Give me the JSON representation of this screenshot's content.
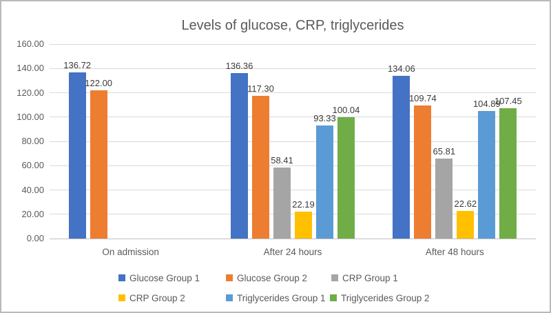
{
  "chart_data": {
    "type": "bar",
    "title": "Levels of glucose, CRP, triglycerides",
    "categories": [
      "On admission",
      "After 24 hours",
      "After 48 hours"
    ],
    "series": [
      {
        "name": "Glucose Group 1",
        "color": "#4472C4",
        "values": [
          136.72,
          136.36,
          134.06
        ]
      },
      {
        "name": "Glucose Group 2",
        "color": "#ED7D31",
        "values": [
          122.0,
          117.3,
          109.74
        ]
      },
      {
        "name": "CRP Group 1",
        "color": "#A5A5A5",
        "values": [
          null,
          58.41,
          65.81
        ]
      },
      {
        "name": "CRP Group 2",
        "color": "#FFC000",
        "values": [
          null,
          22.19,
          22.62
        ]
      },
      {
        "name": "Triglycerides Group 1",
        "color": "#5B9BD5",
        "values": [
          null,
          93.33,
          104.89
        ]
      },
      {
        "name": "Triglycerides Group 2",
        "color": "#70AD47",
        "values": [
          null,
          100.04,
          107.45
        ]
      }
    ],
    "y_axis": {
      "min": 0,
      "max": 160,
      "step": 20,
      "tick_labels": [
        "0.00",
        "20.00",
        "40.00",
        "60.00",
        "80.00",
        "100.00",
        "120.00",
        "140.00",
        "160.00"
      ]
    },
    "data_labels": true,
    "data_label_decimals": 2,
    "grid": true,
    "legend_position": "bottom",
    "legend_rows": [
      [
        "Glucose Group 1",
        "Glucose Group 2",
        "CRP Group 1"
      ],
      [
        "CRP Group 2",
        "Triglycerides Group 1",
        "Triglycerides Group 2"
      ]
    ],
    "colors": {
      "title_text": "#595959",
      "axis_text": "#595959",
      "data_label_text": "#3a3a3a",
      "gridline": "#d9d9d9",
      "baseline": "#bfbfbf"
    }
  }
}
